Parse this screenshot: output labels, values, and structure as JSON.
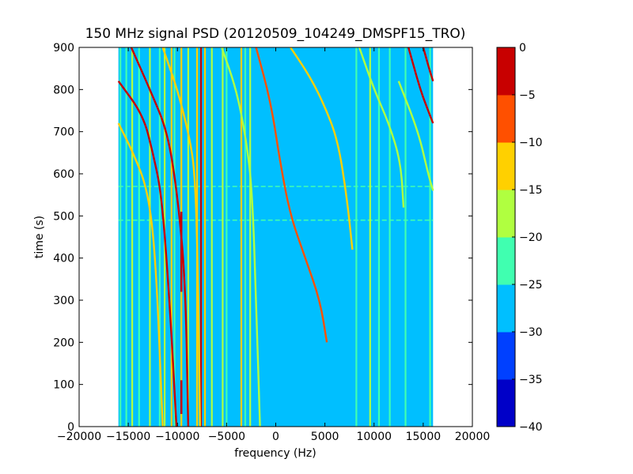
{
  "chart_data": {
    "type": "heatmap",
    "title": "150 MHz signal PSD (20120509_104249_DMSPF15_TRO)",
    "xlabel": "frequency (Hz)",
    "ylabel": "time (s)",
    "xlim": [
      -20000,
      20000
    ],
    "ylim": [
      0,
      900
    ],
    "data_extent_x": [
      -16000,
      16000
    ],
    "x_ticks": [
      -20000,
      -15000,
      -10000,
      -5000,
      0,
      5000,
      10000,
      15000,
      20000
    ],
    "x_tick_labels": [
      "−20000",
      "−15000",
      "−10000",
      "−5000",
      "0",
      "5000",
      "10000",
      "15000",
      "20000"
    ],
    "y_ticks": [
      0,
      100,
      200,
      300,
      400,
      500,
      600,
      700,
      800,
      900
    ],
    "y_tick_labels": [
      "0",
      "100",
      "200",
      "300",
      "400",
      "500",
      "600",
      "700",
      "800",
      "900"
    ],
    "background_level": -27.5,
    "colorbar": {
      "levels": [
        -40,
        -35,
        -30,
        -25,
        -20,
        -15,
        -10,
        -5,
        0
      ],
      "tick_labels": [
        "−40",
        "−35",
        "−30",
        "−25",
        "−20",
        "−15",
        "−10",
        "−5",
        "0"
      ],
      "colors": [
        "#0000c8",
        "#0040ff",
        "#00bfff",
        "#40ffb0",
        "#b0ff40",
        "#ffd000",
        "#ff5000",
        "#c80000"
      ]
    },
    "vertical_lines": [
      {
        "f": -15800,
        "level": -22
      },
      {
        "f": -15200,
        "level": -22
      },
      {
        "f": -14600,
        "level": -18
      },
      {
        "f": -13900,
        "level": -22
      },
      {
        "f": -12800,
        "level": -17
      },
      {
        "f": -11800,
        "level": -22
      },
      {
        "f": -11300,
        "level": -17
      },
      {
        "f": -10600,
        "level": -12
      },
      {
        "f": -10300,
        "level": -22
      },
      {
        "f": -9600,
        "level": -12
      },
      {
        "f": -8900,
        "level": -17
      },
      {
        "f": -8000,
        "level": -12
      },
      {
        "f": -7600,
        "level": -4
      },
      {
        "f": -7200,
        "level": -12
      },
      {
        "f": -6500,
        "level": -17
      },
      {
        "f": -5400,
        "level": -17
      },
      {
        "f": -5000,
        "level": -22
      },
      {
        "f": -3500,
        "level": -12
      },
      {
        "f": -3100,
        "level": -22
      },
      {
        "f": -2600,
        "level": -17
      },
      {
        "f": 8200,
        "level": -22
      },
      {
        "f": 9600,
        "level": -17
      },
      {
        "f": 10500,
        "level": -22
      },
      {
        "f": 11600,
        "level": -22
      },
      {
        "f": 13200,
        "level": -22
      },
      {
        "f": 15700,
        "level": -22
      }
    ],
    "segments": [
      {
        "f": -9600,
        "t0": 320,
        "t1": 510,
        "level": -2
      },
      {
        "f": -9600,
        "t0": 30,
        "t1": 110,
        "level": -2
      }
    ],
    "horizontal_lines": [
      {
        "t": 490,
        "level": -22
      },
      {
        "t": 570,
        "level": -22
      }
    ],
    "curves": [
      {
        "points": [
          [
            -16000,
            820
          ],
          [
            -13500,
            740
          ],
          [
            -12500,
            650
          ],
          [
            -11600,
            550
          ],
          [
            -10800,
            300
          ],
          [
            -10100,
            0
          ]
        ],
        "level": -4
      },
      {
        "points": [
          [
            -16000,
            720
          ],
          [
            -14500,
            650
          ],
          [
            -13000,
            560
          ],
          [
            -12200,
            400
          ],
          [
            -11500,
            0
          ]
        ],
        "level": -12
      },
      {
        "points": [
          [
            -14700,
            900
          ],
          [
            -12800,
            800
          ],
          [
            -11000,
            700
          ],
          [
            -10000,
            550
          ],
          [
            -9200,
            350
          ],
          [
            -8900,
            0
          ]
        ],
        "level": -4
      },
      {
        "points": [
          [
            -11500,
            900
          ],
          [
            -10000,
            800
          ],
          [
            -8800,
            690
          ],
          [
            -8200,
            600
          ],
          [
            -7900,
            350
          ],
          [
            -7700,
            0
          ]
        ],
        "level": -12
      },
      {
        "points": [
          [
            -5500,
            900
          ],
          [
            -4000,
            800
          ],
          [
            -3000,
            680
          ],
          [
            -2400,
            560
          ],
          [
            -2000,
            300
          ],
          [
            -1600,
            0
          ]
        ],
        "level": -17
      },
      {
        "points": [
          [
            -2000,
            900
          ],
          [
            -500,
            770
          ],
          [
            500,
            620
          ],
          [
            1500,
            500
          ],
          [
            3000,
            400
          ],
          [
            4500,
            300
          ],
          [
            5200,
            200
          ]
        ],
        "level": -10
      },
      {
        "points": [
          [
            1500,
            900
          ],
          [
            3500,
            830
          ],
          [
            5000,
            760
          ],
          [
            6300,
            680
          ],
          [
            7200,
            550
          ],
          [
            7800,
            420
          ]
        ],
        "level": -15
      },
      {
        "points": [
          [
            8500,
            900
          ],
          [
            10000,
            800
          ],
          [
            11500,
            720
          ],
          [
            12700,
            630
          ],
          [
            13000,
            520
          ]
        ],
        "level": -17
      },
      {
        "points": [
          [
            12500,
            820
          ],
          [
            14500,
            700
          ],
          [
            15500,
            600
          ],
          [
            16000,
            560
          ]
        ],
        "level": -17
      },
      {
        "points": [
          [
            13500,
            900
          ],
          [
            14700,
            800
          ],
          [
            15500,
            750
          ],
          [
            16000,
            720
          ]
        ],
        "level": -4
      },
      {
        "points": [
          [
            15000,
            900
          ],
          [
            15600,
            850
          ],
          [
            16000,
            820
          ]
        ],
        "level": -4
      }
    ]
  }
}
